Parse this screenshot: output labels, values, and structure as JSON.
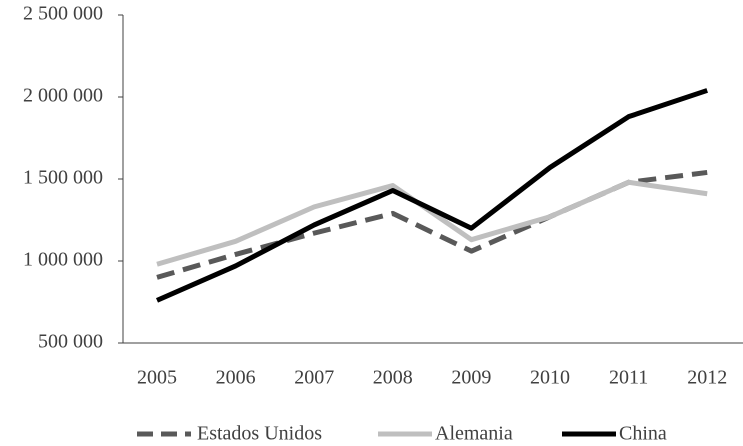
{
  "chart_data": {
    "type": "line",
    "x": [
      "2005",
      "2006",
      "2007",
      "2008",
      "2009",
      "2010",
      "2011",
      "2012"
    ],
    "series": [
      {
        "name": "Estados Unidos",
        "color": "#595959",
        "dashed": true,
        "values": [
          900000,
          1040000,
          1170000,
          1290000,
          1060000,
          1270000,
          1480000,
          1540000
        ]
      },
      {
        "name": "Alemania",
        "color": "#bfbfbf",
        "dashed": false,
        "values": [
          980000,
          1120000,
          1330000,
          1460000,
          1130000,
          1270000,
          1480000,
          1410000
        ]
      },
      {
        "name": "China",
        "color": "#000000",
        "dashed": false,
        "values": [
          760000,
          970000,
          1220000,
          1430000,
          1200000,
          1570000,
          1880000,
          2040000
        ]
      }
    ],
    "ylim": [
      500000,
      2500000
    ],
    "yticks": [
      {
        "value": 500000,
        "label": "500 000"
      },
      {
        "value": 1000000,
        "label": "1 000 000"
      },
      {
        "value": 1500000,
        "label": "1 500 000"
      },
      {
        "value": 2000000,
        "label": "2 000 000"
      },
      {
        "value": 2500000,
        "label": "2 500 000"
      }
    ],
    "legend": "bottom"
  }
}
